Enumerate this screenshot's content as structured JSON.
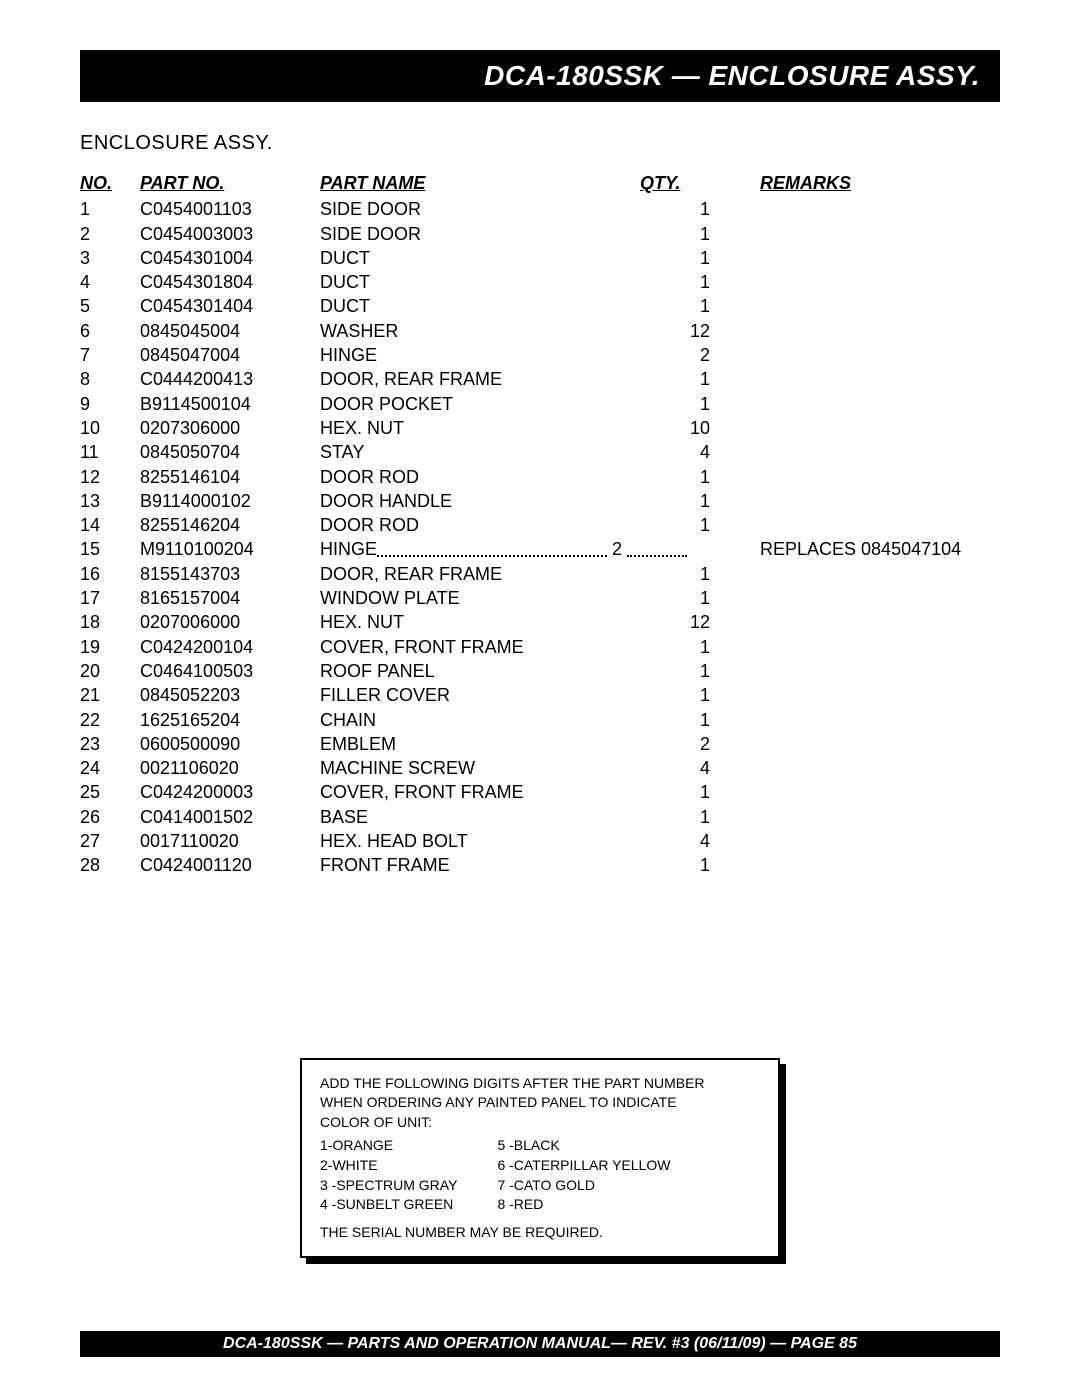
{
  "header": "DCA-180SSK — ENCLOSURE ASSY.",
  "section": "ENCLOSURE ASSY.",
  "cols": {
    "no": "NO.",
    "part": "PART NO.",
    "name": "PART NAME",
    "qty": "QTY.",
    "remarks": "REMARKS"
  },
  "rows": [
    {
      "no": "1",
      "part": "C0454001103",
      "name": "SIDE DOOR",
      "qty": "1",
      "remarks": ""
    },
    {
      "no": "2",
      "part": "C0454003003",
      "name": "SIDE DOOR",
      "qty": "1",
      "remarks": ""
    },
    {
      "no": "3",
      "part": "C0454301004",
      "name": "DUCT",
      "qty": "1",
      "remarks": ""
    },
    {
      "no": "4",
      "part": "C0454301804",
      "name": "DUCT",
      "qty": "1",
      "remarks": ""
    },
    {
      "no": "5",
      "part": "C0454301404",
      "name": "DUCT",
      "qty": "1",
      "remarks": ""
    },
    {
      "no": "6",
      "part": "0845045004",
      "name": "WASHER",
      "qty": "12",
      "remarks": ""
    },
    {
      "no": "7",
      "part": "0845047004",
      "name": "HINGE",
      "qty": "2",
      "remarks": ""
    },
    {
      "no": "8",
      "part": "C0444200413",
      "name": "DOOR, REAR FRAME",
      "qty": "1",
      "remarks": ""
    },
    {
      "no": "9",
      "part": "B9114500104",
      "name": "DOOR POCKET",
      "qty": "1",
      "remarks": ""
    },
    {
      "no": "10",
      "part": "0207306000",
      "name": "HEX. NUT",
      "qty": "10",
      "remarks": ""
    },
    {
      "no": "11",
      "part": "0845050704",
      "name": "STAY",
      "qty": "4",
      "remarks": ""
    },
    {
      "no": "12",
      "part": "8255146104",
      "name": "DOOR ROD",
      "qty": "1",
      "remarks": ""
    },
    {
      "no": "13",
      "part": "B9114000102",
      "name": "DOOR HANDLE",
      "qty": "1",
      "remarks": ""
    },
    {
      "no": "14",
      "part": "8255146204",
      "name": "DOOR ROD",
      "qty": "1",
      "remarks": ""
    },
    {
      "no": "15",
      "part": "M9110100204",
      "name": "HINGE",
      "qty": "2",
      "remarks": "REPLACES 0845047104",
      "dotted": true
    },
    {
      "no": "16",
      "part": "8155143703",
      "name": "DOOR, REAR FRAME",
      "qty": "1",
      "remarks": ""
    },
    {
      "no": "17",
      "part": "8165157004",
      "name": "WINDOW PLATE",
      "qty": "1",
      "remarks": ""
    },
    {
      "no": "18",
      "part": "0207006000",
      "name": "HEX. NUT",
      "qty": "12",
      "remarks": ""
    },
    {
      "no": "19",
      "part": "C0424200104",
      "name": "COVER, FRONT FRAME",
      "qty": "1",
      "remarks": ""
    },
    {
      "no": "20",
      "part": "C0464100503",
      "name": "ROOF PANEL",
      "qty": "1",
      "remarks": ""
    },
    {
      "no": "21",
      "part": "0845052203",
      "name": "FILLER COVER",
      "qty": "1",
      "remarks": ""
    },
    {
      "no": "22",
      "part": "1625165204",
      "name": "CHAIN",
      "qty": "1",
      "remarks": ""
    },
    {
      "no": "23",
      "part": "0600500090",
      "name": "EMBLEM",
      "qty": "2",
      "remarks": ""
    },
    {
      "no": "24",
      "part": "0021106020",
      "name": "MACHINE SCREW",
      "qty": "4",
      "remarks": ""
    },
    {
      "no": "25",
      "part": "C0424200003",
      "name": "COVER, FRONT FRAME",
      "qty": "1",
      "remarks": ""
    },
    {
      "no": "26",
      "part": "C0414001502",
      "name": "BASE",
      "qty": "1",
      "remarks": ""
    },
    {
      "no": "27",
      "part": "0017110020",
      "name": "HEX. HEAD BOLT",
      "qty": "4",
      "remarks": ""
    },
    {
      "no": "28",
      "part": "C0424001120",
      "name": "FRONT FRAME",
      "qty": "1",
      "remarks": ""
    }
  ],
  "info": {
    "line1": "ADD THE FOLLOWING DIGITS AFTER THE PART NUMBER",
    "line2": "WHEN ORDERING ANY PAINTED PANEL TO INDICATE",
    "line3": "COLOR OF UNIT:",
    "left": [
      "1-ORANGE",
      "2-WHITE",
      "3 -SPECTRUM GRAY",
      "4 -SUNBELT GREEN"
    ],
    "right": [
      "5 -BLACK",
      "6 -CATERPILLAR YELLOW",
      "7 -CATO GOLD",
      "8 -RED"
    ],
    "line4": "THE SERIAL NUMBER MAY BE REQUIRED."
  },
  "footer": "DCA-180SSK — PARTS AND OPERATION  MANUAL— REV. #3  (06/11/09) — PAGE 85"
}
